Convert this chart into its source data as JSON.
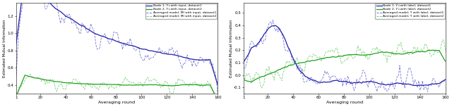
{
  "figsize": [
    6.4,
    1.52
  ],
  "dpi": 100,
  "xlabel": "Averaging round",
  "ylabel": "Estimated Mutual Information",
  "legend_labels_1": [
    "Node 1, Y=with input, dataset1",
    "Node 2, Y=with input, dataset2",
    "Averaged model, MI with input, dataset1",
    "Averaged model, MI with input, dataset2"
  ],
  "legend_labels_2": [
    "Node 1, Y=with label, dataset1",
    "Node 2, Y=with label, dataset2",
    "Averaged model, Y with label, dataset1",
    "Averaged model, Y with label, dataset2"
  ],
  "colors": {
    "blue_solid": "#2020aa",
    "green_solid": "#20a020",
    "blue_dashed": "#6060cc",
    "green_dashed": "#60cc60"
  },
  "xlim": [
    1,
    160
  ],
  "xticks": [
    1,
    20,
    40,
    60,
    80,
    100,
    120,
    140,
    160
  ],
  "plot1": {
    "ylim": [
      0.3,
      1.35
    ],
    "yticks": [
      0.4,
      0.6,
      0.8,
      1.0,
      1.2
    ]
  },
  "plot2": {
    "ylim": [
      -0.15,
      0.58
    ],
    "yticks": [
      -0.1,
      0.0,
      0.1,
      0.2,
      0.3,
      0.4,
      0.5
    ]
  },
  "n_points": 160
}
